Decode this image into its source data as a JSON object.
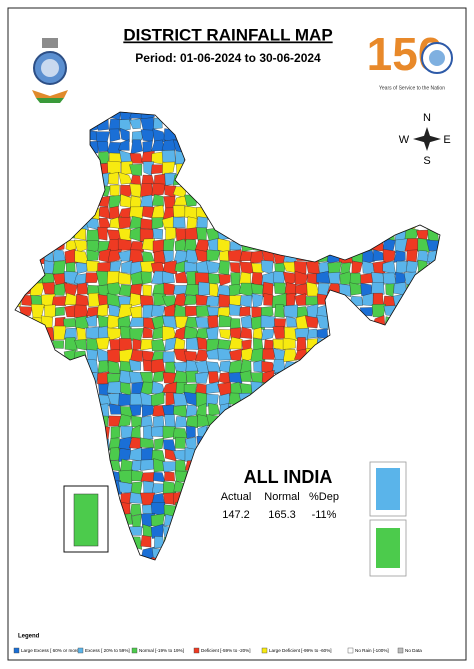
{
  "header": {
    "title": "DISTRICT RAINFALL MAP",
    "period": "Period: 01-06-2024 to 30-06-2024"
  },
  "logo": {
    "number": "150",
    "tagline": "Years of Service to the Nation"
  },
  "compass": {
    "n": "N",
    "e": "E",
    "s": "S",
    "w": "W"
  },
  "all_india": {
    "title": "ALL INDIA",
    "columns": [
      "Actual",
      "Normal",
      "%Dep"
    ],
    "values": [
      "147.2",
      "165.3",
      "-11%"
    ]
  },
  "legend": {
    "title": "Legend",
    "items": [
      {
        "label": "Large Excess [ 60% or more]",
        "color": "#1a6fd6"
      },
      {
        "label": "Excess [ 20% to 59%]",
        "color": "#5ab4ea"
      },
      {
        "label": "Normal [-19% to 19%]",
        "color": "#4ccb4c"
      },
      {
        "label": "Deficient [-59% to -20%]",
        "color": "#ee3a22"
      },
      {
        "label": "Large Deficient [-99% to -60%]",
        "color": "#f7ea10"
      },
      {
        "label": "No Rain [-100%]",
        "color": "#ffffff"
      },
      {
        "label": "No Data",
        "color": "#bdbdbd"
      }
    ]
  }
}
